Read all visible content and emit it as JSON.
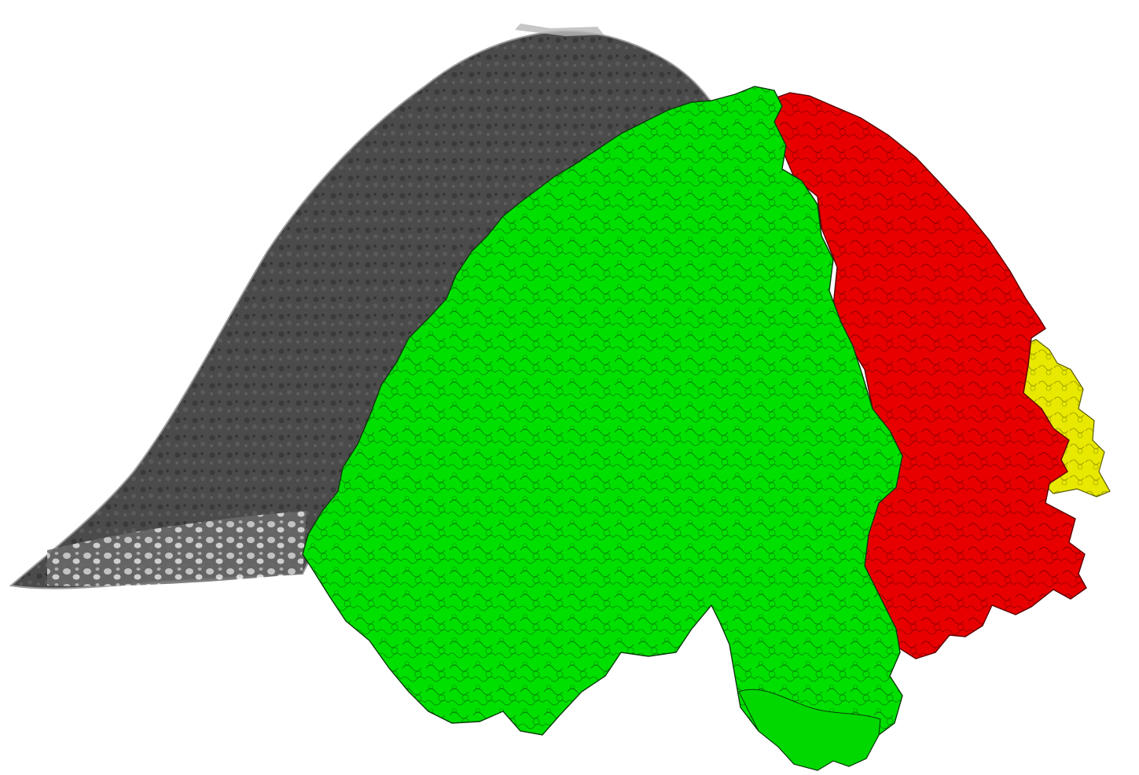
{
  "colors": {
    "background": "#ffffff",
    "gray_volume": "#4a4a4a",
    "gray_volume_dark": "#2f2f2f",
    "gray_volume_light": "#8a8a8a",
    "green_segment": "#00e000",
    "red_segment": "#e60000",
    "yellow_segment": "#e6e600",
    "outline": "#1a3a1a"
  }
}
